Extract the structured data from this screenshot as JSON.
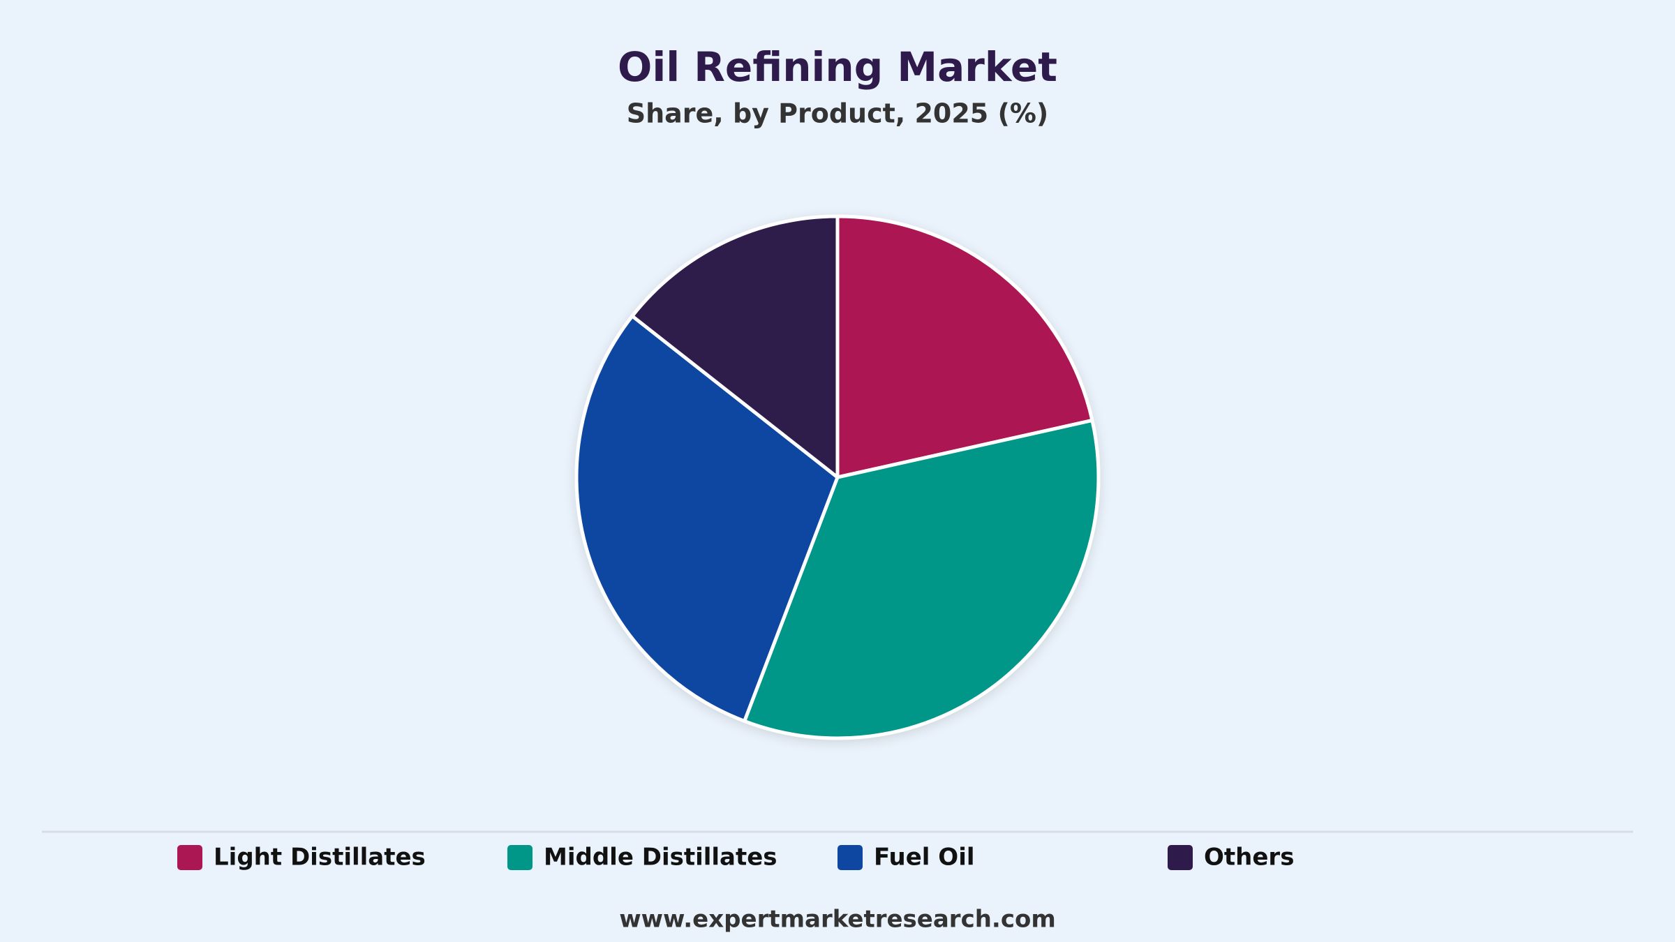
{
  "chart_data": {
    "type": "pie",
    "title": "Oil Refining Market",
    "subtitle": "Share, by Product, 2025 (%)",
    "categories": [
      "Light Distillates",
      "Middle Distillates",
      "Fuel Oil",
      "Others"
    ],
    "values": [
      21.5,
      34.3,
      29.8,
      14.4
    ],
    "colors": [
      "#ab1753",
      "#009688",
      "#0d47a1",
      "#2e1a4b"
    ],
    "source": "www.expertmarketresearch.com"
  }
}
